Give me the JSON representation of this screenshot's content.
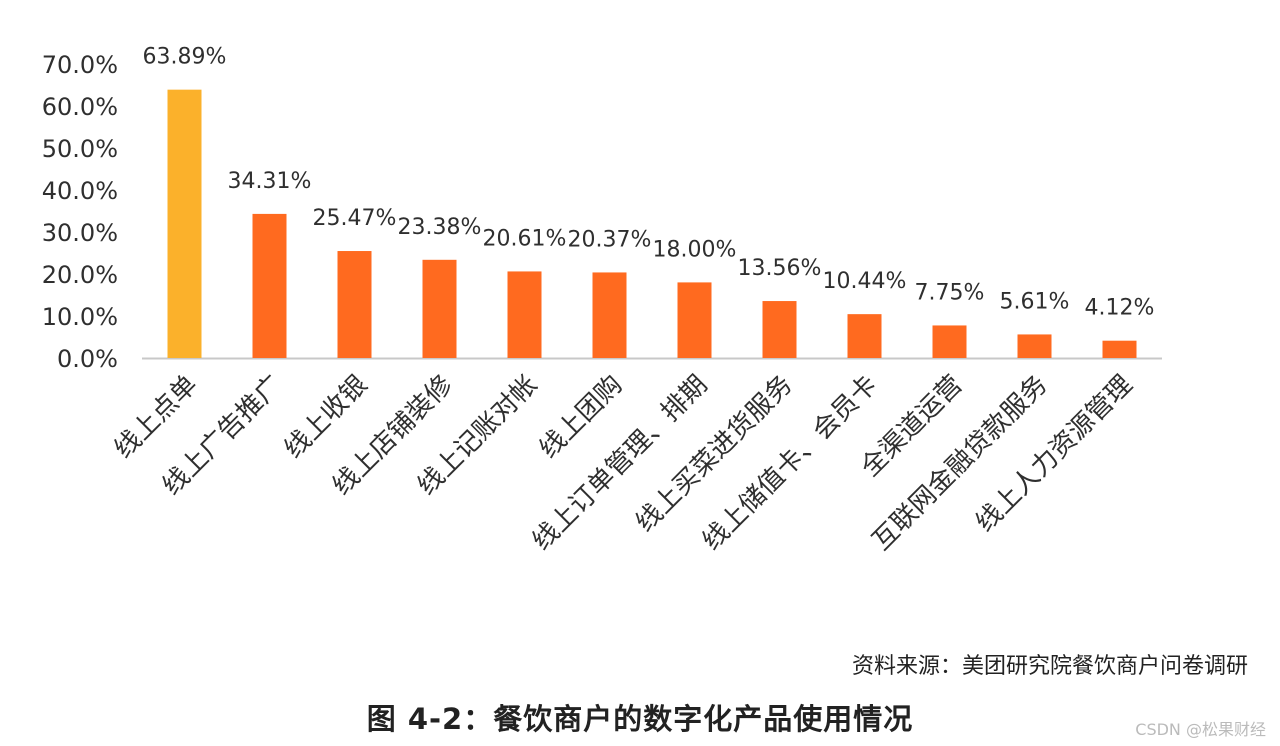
{
  "chart_data": {
    "type": "bar",
    "categories": [
      "线上点单",
      "线上广告推广",
      "线上收银",
      "线上店铺装修",
      "线上记账对帐",
      "线上团购",
      "线上订单管理、排期",
      "线上买菜进货服务",
      "线上储值卡、会员卡",
      "全渠道运营",
      "互联网金融贷款服务",
      "线上人力资源管理"
    ],
    "values": [
      63.89,
      34.31,
      25.47,
      23.38,
      20.61,
      20.37,
      18.0,
      13.56,
      10.44,
      7.75,
      5.61,
      4.12
    ],
    "data_labels": [
      "63.89%",
      "34.31%",
      "25.47%",
      "23.38%",
      "20.61%",
      "20.37%",
      "18.00%",
      "13.56%",
      "10.44%",
      "7.75%",
      "5.61%",
      "4.12%"
    ],
    "yticks": [
      "0.0%",
      "10.0%",
      "20.0%",
      "30.0%",
      "40.0%",
      "50.0%",
      "60.0%",
      "70.0%"
    ],
    "ylim": [
      0,
      70
    ],
    "grid": false,
    "colors": {
      "highlight": "#FBB12B",
      "bar": "#FF6A1F",
      "axis": "#c8c8c8"
    },
    "highlight_index": 0
  },
  "source_text": "资料来源：美团研究院餐饮商户问卷调研",
  "caption": "图 4-2：餐饮商户的数字化产品使用情况",
  "watermark": "CSDN @松果财经"
}
